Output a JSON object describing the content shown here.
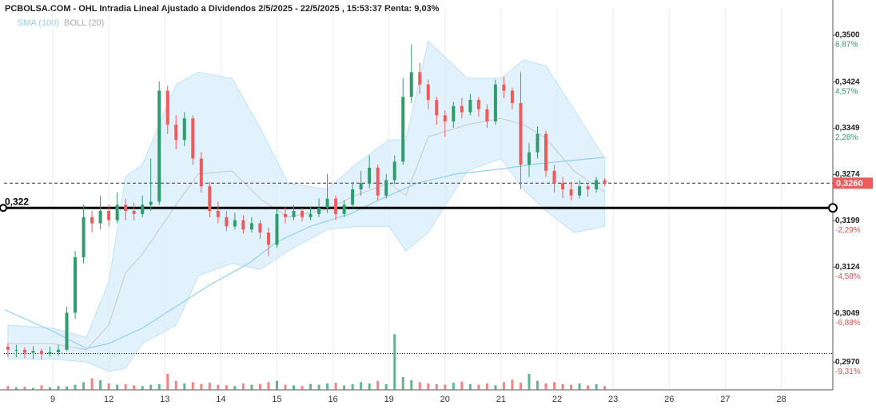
{
  "chart_data": {
    "type": "candlestick",
    "title": "PCBOLSA.COM - OHL Intradia Lineal Ajustado a Dividendos 2/5/2025 - 22/5/2025 , 15:53:37 Renta: 9,03%",
    "legend": [
      "SMA (100)",
      "BOLL (20)"
    ],
    "up_color": "#2e9c6c",
    "down_color": "#ef5a5a",
    "xlim": [
      -0.87,
      13.92
    ],
    "xticks": [
      {
        "value": 0,
        "label": "9"
      },
      {
        "value": 1,
        "label": "12"
      },
      {
        "value": 2,
        "label": "13"
      },
      {
        "value": 3,
        "label": "14"
      },
      {
        "value": 4,
        "label": "15"
      },
      {
        "value": 5,
        "label": "16"
      },
      {
        "value": 6,
        "label": "19"
      },
      {
        "value": 7,
        "label": "20"
      },
      {
        "value": 8,
        "label": "21"
      },
      {
        "value": 9,
        "label": "22"
      },
      {
        "value": 10,
        "label": "23"
      },
      {
        "value": 11,
        "label": "26"
      },
      {
        "value": 12,
        "label": "27"
      },
      {
        "value": 13,
        "label": "28"
      }
    ],
    "ylim": [
      0.2925,
      0.3544
    ],
    "yticks": [
      {
        "value": 0.35,
        "label": "0,3500"
      },
      {
        "value": 0.3424,
        "label": "0,3424"
      },
      {
        "value": 0.3349,
        "label": "0,3349"
      },
      {
        "value": 0.3274,
        "label": "0,3274"
      },
      {
        "value": 0.3199,
        "label": "0,3199"
      },
      {
        "value": 0.3124,
        "label": "0,3124"
      },
      {
        "value": 0.3049,
        "label": "0,3049"
      },
      {
        "value": 0.297,
        "label": "0,2970"
      }
    ],
    "yticks_pct": [
      "6,87%",
      "4,57%",
      "2,28%",
      null,
      "-2,29%",
      "-4,58%",
      "-6,88%",
      "-9,31%"
    ],
    "x": [
      -0.8,
      -0.65,
      -0.5,
      -0.35,
      -0.2,
      -0.05,
      0.1,
      0.25,
      0.4,
      0.55,
      0.7,
      0.85,
      1.0,
      1.15,
      1.3,
      1.45,
      1.6,
      1.75,
      1.9,
      2.05,
      2.2,
      2.35,
      2.5,
      2.65,
      2.8,
      2.95,
      3.1,
      3.25,
      3.4,
      3.55,
      3.7,
      3.85,
      4.0,
      4.15,
      4.3,
      4.45,
      4.6,
      4.75,
      4.9,
      5.05,
      5.2,
      5.35,
      5.5,
      5.65,
      5.8,
      5.95,
      6.1,
      6.25,
      6.4,
      6.55,
      6.7,
      6.85,
      7.0,
      7.15,
      7.3,
      7.45,
      7.6,
      7.75,
      7.9,
      8.05,
      8.2,
      8.35,
      8.5,
      8.65,
      8.8,
      8.95,
      9.1,
      9.25,
      9.4,
      9.55,
      9.7,
      9.85
    ],
    "ohlc": [
      [
        0.2995,
        0.3,
        0.2978,
        0.299
      ],
      [
        0.299,
        0.2998,
        0.2978,
        0.299
      ],
      [
        0.299,
        0.2994,
        0.2976,
        0.2985
      ],
      [
        0.2985,
        0.2996,
        0.2975,
        0.2988
      ],
      [
        0.2988,
        0.2992,
        0.2974,
        0.2983
      ],
      [
        0.2983,
        0.2995,
        0.2979,
        0.2986
      ],
      [
        0.2986,
        0.2998,
        0.298,
        0.299
      ],
      [
        0.299,
        0.306,
        0.2988,
        0.305
      ],
      [
        0.305,
        0.315,
        0.304,
        0.314
      ],
      [
        0.314,
        0.3225,
        0.313,
        0.3205
      ],
      [
        0.3205,
        0.3215,
        0.318,
        0.3195
      ],
      [
        0.3195,
        0.324,
        0.3185,
        0.3215
      ],
      [
        0.3215,
        0.3225,
        0.319,
        0.32
      ],
      [
        0.32,
        0.3245,
        0.3195,
        0.3225
      ],
      [
        0.3225,
        0.3235,
        0.32,
        0.3215
      ],
      [
        0.3215,
        0.3228,
        0.32,
        0.321
      ],
      [
        0.321,
        0.324,
        0.3205,
        0.3225
      ],
      [
        0.3225,
        0.33,
        0.3215,
        0.323
      ],
      [
        0.323,
        0.3425,
        0.3225,
        0.341
      ],
      [
        0.341,
        0.3418,
        0.334,
        0.3355
      ],
      [
        0.3355,
        0.337,
        0.3315,
        0.333
      ],
      [
        0.333,
        0.3375,
        0.332,
        0.3365
      ],
      [
        0.3365,
        0.337,
        0.329,
        0.33
      ],
      [
        0.33,
        0.331,
        0.3245,
        0.3255
      ],
      [
        0.3255,
        0.3262,
        0.3205,
        0.3215
      ],
      [
        0.3215,
        0.323,
        0.3195,
        0.3205
      ],
      [
        0.3205,
        0.3215,
        0.3182,
        0.319
      ],
      [
        0.319,
        0.3212,
        0.3185,
        0.32
      ],
      [
        0.32,
        0.3208,
        0.3178,
        0.3185
      ],
      [
        0.3185,
        0.3205,
        0.318,
        0.3195
      ],
      [
        0.3195,
        0.32,
        0.317,
        0.318
      ],
      [
        0.318,
        0.3188,
        0.3142,
        0.316
      ],
      [
        0.316,
        0.3218,
        0.3155,
        0.321
      ],
      [
        0.321,
        0.3222,
        0.3195,
        0.3205
      ],
      [
        0.3205,
        0.3225,
        0.32,
        0.3215
      ],
      [
        0.3215,
        0.322,
        0.3198,
        0.3205
      ],
      [
        0.3205,
        0.3222,
        0.32,
        0.321
      ],
      [
        0.321,
        0.3235,
        0.3205,
        0.322
      ],
      [
        0.322,
        0.3275,
        0.3212,
        0.3235
      ],
      [
        0.3235,
        0.324,
        0.32,
        0.321
      ],
      [
        0.321,
        0.3232,
        0.3205,
        0.3225
      ],
      [
        0.3225,
        0.3262,
        0.322,
        0.325
      ],
      [
        0.325,
        0.328,
        0.324,
        0.326
      ],
      [
        0.326,
        0.3305,
        0.3252,
        0.3285
      ],
      [
        0.3285,
        0.329,
        0.3232,
        0.324
      ],
      [
        0.324,
        0.3275,
        0.3235,
        0.3265
      ],
      [
        0.3265,
        0.3305,
        0.3258,
        0.3295
      ],
      [
        0.3295,
        0.343,
        0.329,
        0.34
      ],
      [
        0.34,
        0.3485,
        0.339,
        0.344
      ],
      [
        0.344,
        0.3455,
        0.3405,
        0.342
      ],
      [
        0.342,
        0.3428,
        0.338,
        0.3395
      ],
      [
        0.3395,
        0.34,
        0.3355,
        0.337
      ],
      [
        0.337,
        0.3378,
        0.3335,
        0.336
      ],
      [
        0.336,
        0.3392,
        0.335,
        0.3385
      ],
      [
        0.3385,
        0.3398,
        0.3365,
        0.3375
      ],
      [
        0.3375,
        0.3405,
        0.337,
        0.3395
      ],
      [
        0.3395,
        0.34,
        0.3368,
        0.338
      ],
      [
        0.338,
        0.3388,
        0.335,
        0.336
      ],
      [
        0.336,
        0.3428,
        0.3355,
        0.342
      ],
      [
        0.342,
        0.3432,
        0.3398,
        0.341
      ],
      [
        0.341,
        0.3415,
        0.338,
        0.339
      ],
      [
        0.339,
        0.344,
        0.325,
        0.329
      ],
      [
        0.329,
        0.3325,
        0.327,
        0.331
      ],
      [
        0.331,
        0.3352,
        0.33,
        0.334
      ],
      [
        0.334,
        0.3345,
        0.327,
        0.328
      ],
      [
        0.328,
        0.329,
        0.3245,
        0.326
      ],
      [
        0.326,
        0.327,
        0.3236,
        0.325
      ],
      [
        0.325,
        0.3262,
        0.3232,
        0.324
      ],
      [
        0.324,
        0.3265,
        0.3235,
        0.3255
      ],
      [
        0.3255,
        0.326,
        0.3238,
        0.325
      ],
      [
        0.325,
        0.327,
        0.3245,
        0.3265
      ],
      [
        0.3265,
        0.3268,
        0.3255,
        0.326
      ]
    ],
    "volume": [
      6,
      4,
      5,
      3,
      7,
      4,
      6,
      5,
      8,
      12,
      18,
      15,
      10,
      8,
      9,
      7,
      6,
      8,
      9,
      25,
      14,
      10,
      12,
      9,
      11,
      8,
      7,
      6,
      10,
      8,
      9,
      12,
      14,
      8,
      7,
      6,
      9,
      8,
      10,
      11,
      7,
      9,
      12,
      10,
      14,
      9,
      87,
      20,
      15,
      12,
      10,
      9,
      8,
      11,
      13,
      9,
      8,
      10,
      7,
      12,
      16,
      11,
      25,
      14,
      10,
      12,
      9,
      8,
      10,
      7,
      9,
      6
    ],
    "volume_ylim": [
      0,
      100
    ],
    "sma": {
      "name": "SMA (100)",
      "color": "#8fd0f0",
      "x": [
        -0.86,
        0.0,
        0.6,
        1.0,
        1.6,
        2.2,
        2.8,
        3.5,
        4.0,
        4.6,
        5.3,
        5.9,
        6.5,
        7.2,
        8.0,
        8.7,
        9.85
      ],
      "values": [
        0.3055,
        0.302,
        0.2992,
        0.3,
        0.3025,
        0.306,
        0.3095,
        0.313,
        0.3165,
        0.319,
        0.321,
        0.3236,
        0.326,
        0.3275,
        0.3283,
        0.3292,
        0.3302
      ]
    },
    "boll": {
      "name": "BOLL (20)",
      "color": "#c8c8c8",
      "fill": "#d8eefb",
      "x": [
        -0.8,
        0.0,
        0.6,
        1.0,
        1.3,
        1.6,
        2.2,
        2.6,
        3.2,
        3.7,
        4.2,
        4.9,
        5.4,
        6.0,
        6.3,
        6.7,
        7.4,
        8.0,
        8.4,
        8.8,
        9.3,
        9.85
      ],
      "upper": [
        0.303,
        0.3025,
        0.301,
        0.31,
        0.327,
        0.329,
        0.342,
        0.344,
        0.343,
        0.335,
        0.326,
        0.325,
        0.329,
        0.333,
        0.333,
        0.349,
        0.343,
        0.343,
        0.346,
        0.345,
        0.338,
        0.33
      ],
      "lower": [
        0.2975,
        0.2975,
        0.297,
        0.2955,
        0.296,
        0.3,
        0.303,
        0.311,
        0.313,
        0.312,
        0.315,
        0.3185,
        0.319,
        0.319,
        0.315,
        0.318,
        0.328,
        0.33,
        0.325,
        0.3215,
        0.318,
        0.319
      ],
      "middle": [
        0.3,
        0.3,
        0.299,
        0.303,
        0.3115,
        0.3145,
        0.3225,
        0.3275,
        0.328,
        0.3235,
        0.3205,
        0.3218,
        0.324,
        0.326,
        0.324,
        0.3335,
        0.3355,
        0.3365,
        0.3355,
        0.3333,
        0.328,
        0.3245
      ]
    },
    "lines": [
      {
        "value": 0.322,
        "label": "0,322",
        "style": "solid"
      },
      {
        "value": 0.326,
        "label": "0,3260",
        "style": "dashed"
      },
      {
        "value": 0.2984,
        "style": "dotted"
      }
    ]
  }
}
